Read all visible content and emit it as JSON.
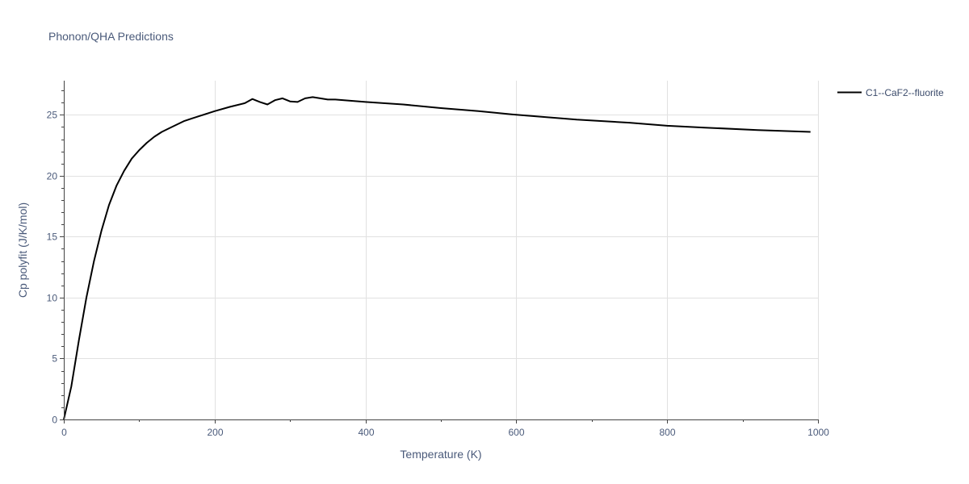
{
  "chart_data": {
    "type": "line",
    "title": "Phonon/QHA Predictions",
    "xlabel": "Temperature (K)",
    "ylabel": "Cp polyfit (J/K/mol)",
    "xlim": [
      0,
      1000
    ],
    "ylim": [
      0,
      27.8
    ],
    "xticks": [
      0,
      200,
      400,
      600,
      800,
      1000
    ],
    "yticks": [
      0,
      5,
      10,
      15,
      20,
      25
    ],
    "grid": true,
    "legend_position": "top-right",
    "line_color": "#000000",
    "series": [
      {
        "name": "C1--CaF2--fluorite",
        "x": [
          0,
          10,
          20,
          30,
          40,
          50,
          60,
          70,
          80,
          90,
          100,
          110,
          120,
          130,
          140,
          150,
          160,
          170,
          180,
          190,
          200,
          220,
          240,
          250,
          260,
          270,
          280,
          290,
          300,
          310,
          320,
          330,
          340,
          350,
          360,
          380,
          400,
          450,
          500,
          550,
          600,
          680,
          750,
          800,
          850,
          920,
          990
        ],
        "values": [
          0,
          2.7,
          6.5,
          10.0,
          13.0,
          15.5,
          17.6,
          19.2,
          20.4,
          21.4,
          22.1,
          22.7,
          23.2,
          23.6,
          23.9,
          24.2,
          24.5,
          24.7,
          24.9,
          25.1,
          25.3,
          25.65,
          25.95,
          26.3,
          26.05,
          25.85,
          26.2,
          26.35,
          26.1,
          26.05,
          26.35,
          26.45,
          26.35,
          26.25,
          26.25,
          26.15,
          26.05,
          25.85,
          25.55,
          25.3,
          25.0,
          24.6,
          24.35,
          24.1,
          23.95,
          23.75,
          23.6
        ]
      }
    ]
  }
}
